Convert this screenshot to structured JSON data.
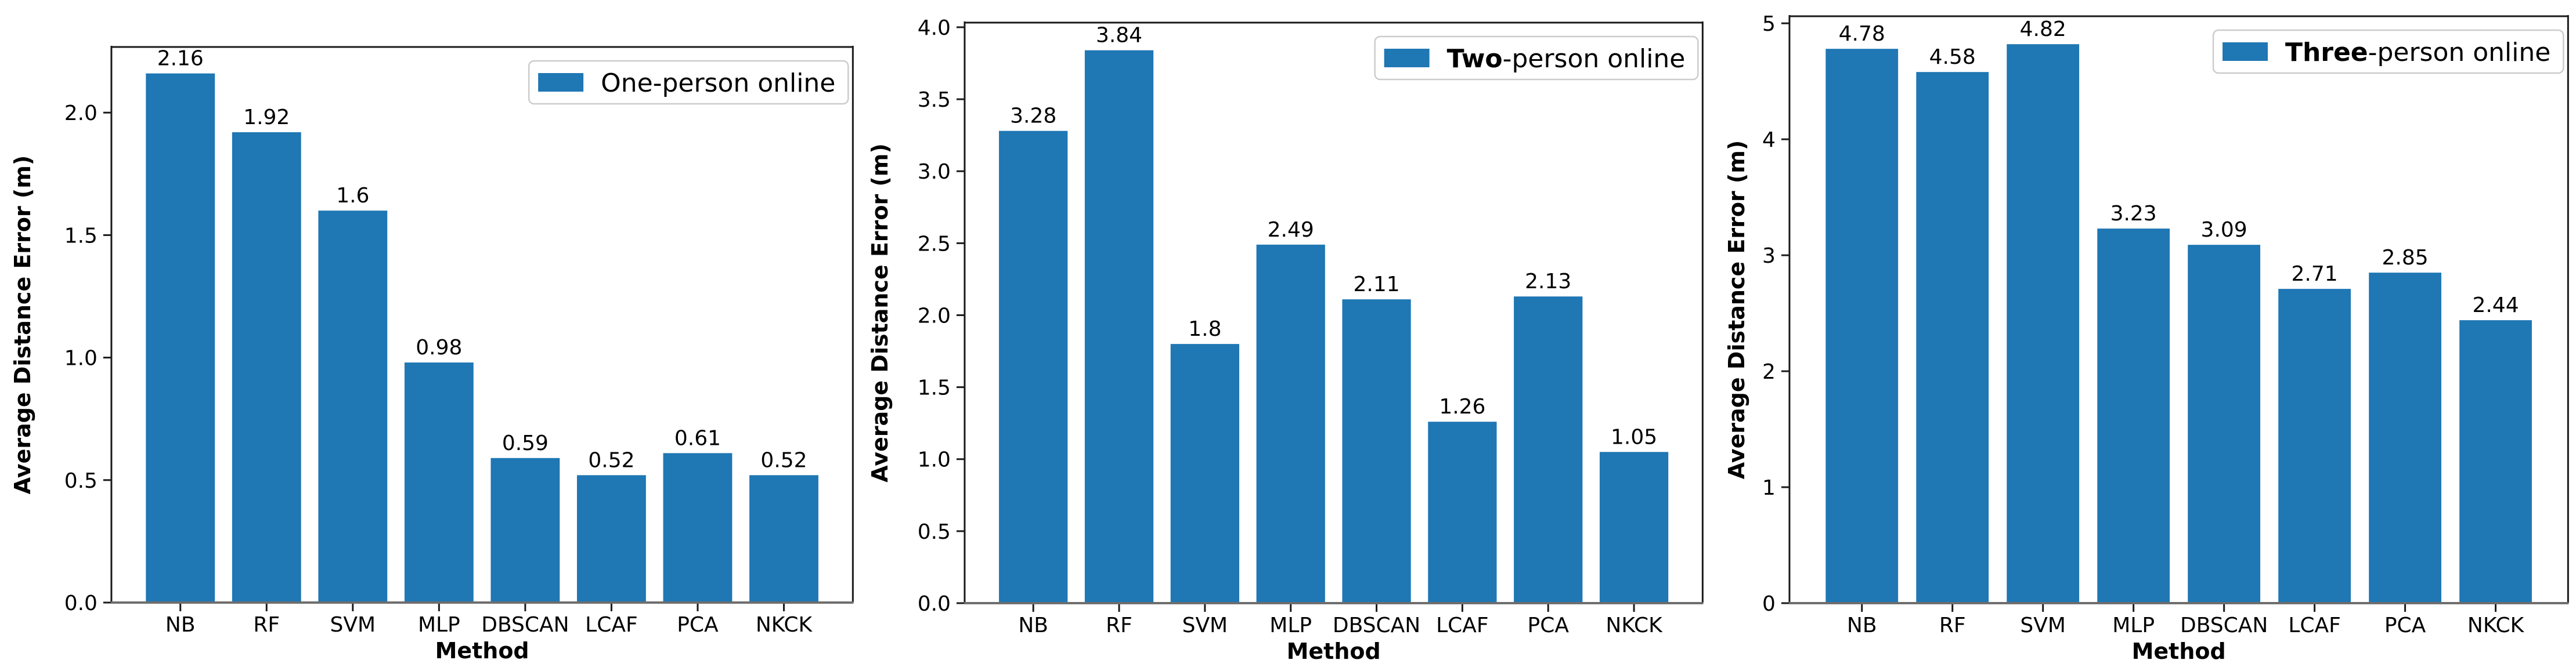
{
  "figure_background": "#ffffff",
  "chart_data": [
    {
      "type": "bar",
      "title": "",
      "legend": {
        "text": "One-person online",
        "bold_prefix": "",
        "position": "upper right"
      },
      "xlabel": "Method",
      "ylabel": "Average Distance Error (m)",
      "categories": [
        "NB",
        "RF",
        "SVM",
        "MLP",
        "DBSCAN",
        "LCAF",
        "PCA",
        "NKCK"
      ],
      "values": [
        2.16,
        1.92,
        1.6,
        0.98,
        0.59,
        0.52,
        0.61,
        0.52
      ],
      "value_labels": [
        "2.16",
        "1.92",
        "1.6",
        "0.98",
        "0.59",
        "0.52",
        "0.61",
        "0.52"
      ],
      "ylim": [
        0,
        2.268
      ],
      "yticks": [
        0,
        0.5,
        1.0,
        1.5,
        2.0
      ],
      "ytick_labels": [
        "0.0",
        "0.5",
        "1.0",
        "1.5",
        "2.0"
      ],
      "grid": false,
      "bar_color": "#1f77b4",
      "axes_color": "#1a1a1a"
    },
    {
      "type": "bar",
      "title": "",
      "legend": {
        "text": "Two-person online",
        "bold_prefix": "Two",
        "position": "upper right"
      },
      "xlabel": "Method",
      "ylabel": "Average Distance Error (m)",
      "categories": [
        "NB",
        "RF",
        "SVM",
        "MLP",
        "DBSCAN",
        "LCAF",
        "PCA",
        "NKCK"
      ],
      "values": [
        3.28,
        3.84,
        1.8,
        2.49,
        2.11,
        1.26,
        2.13,
        1.05
      ],
      "value_labels": [
        "3.28",
        "3.84",
        "1.8",
        "2.49",
        "2.11",
        "1.26",
        "2.13",
        "1.05"
      ],
      "ylim": [
        0,
        4.032
      ],
      "yticks": [
        0,
        0.5,
        1.0,
        1.5,
        2.0,
        2.5,
        3.0,
        3.5,
        4.0
      ],
      "ytick_labels": [
        "0.0",
        "0.5",
        "1.0",
        "1.5",
        "2.0",
        "2.5",
        "3.0",
        "3.5",
        "4.0"
      ],
      "grid": false,
      "bar_color": "#1f77b4",
      "axes_color": "#1a1a1a"
    },
    {
      "type": "bar",
      "title": "",
      "legend": {
        "text": "Three-person online",
        "bold_prefix": "Three",
        "position": "upper right"
      },
      "xlabel": "Method",
      "ylabel": "Average Distance Error (m)",
      "categories": [
        "NB",
        "RF",
        "SVM",
        "MLP",
        "DBSCAN",
        "LCAF",
        "PCA",
        "NKCK"
      ],
      "values": [
        4.78,
        4.58,
        4.82,
        3.23,
        3.09,
        2.71,
        2.85,
        2.44
      ],
      "value_labels": [
        "4.78",
        "4.58",
        "4.82",
        "3.23",
        "3.09",
        "2.71",
        "2.85",
        "2.44"
      ],
      "ylim": [
        0,
        5.061
      ],
      "yticks": [
        0,
        1,
        2,
        3,
        4,
        5
      ],
      "ytick_labels": [
        "0",
        "1",
        "2",
        "3",
        "4",
        "5"
      ],
      "grid": false,
      "bar_color": "#1f77b4",
      "axes_color": "#1a1a1a"
    }
  ]
}
